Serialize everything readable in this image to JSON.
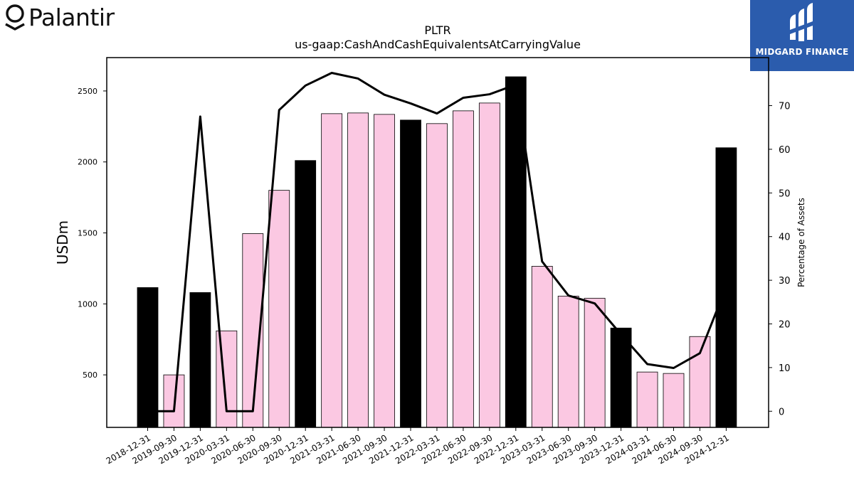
{
  "brand": {
    "name": "Palantir",
    "logo_icon": "palantir-logo-icon"
  },
  "badge": {
    "text": "MIDGARD FINANCE",
    "color": "#2b5cad",
    "icon": "midgard-logo-icon"
  },
  "chart_data": {
    "type": "bar",
    "title": "PLTR",
    "subtitle": "us-gaap:CashAndCashEquivalentsAtCarryingValue",
    "ylabel": "USDm",
    "y2label": "Percentage of Assets",
    "ylim": [
      130,
      2735
    ],
    "y2lim": [
      -3.7,
      81
    ],
    "yticks": [
      500,
      1000,
      1500,
      2000,
      2500
    ],
    "y2ticks": [
      0,
      10,
      20,
      30,
      40,
      50,
      60,
      70
    ],
    "categories": [
      "2018-12-31",
      "2019-09-30",
      "2019-12-31",
      "2020-03-31",
      "2020-06-30",
      "2020-09-30",
      "2020-12-31",
      "2021-03-31",
      "2021-06-30",
      "2021-09-30",
      "2021-12-31",
      "2022-03-31",
      "2022-06-30",
      "2022-09-30",
      "2022-12-31",
      "2023-03-31",
      "2023-06-30",
      "2023-09-30",
      "2023-12-31",
      "2024-03-31",
      "2024-06-30",
      "2024-09-30",
      "2024-12-31"
    ],
    "series": [
      {
        "kind": "bar",
        "values": [
          1115,
          500,
          1080,
          810,
          1495,
          1800,
          2010,
          2340,
          2345,
          2335,
          2295,
          2270,
          2360,
          2415,
          2600,
          1265,
          1055,
          1040,
          830,
          520,
          510,
          770,
          2100
        ],
        "fiscal_year_end": [
          true,
          false,
          true,
          false,
          false,
          false,
          true,
          false,
          false,
          false,
          true,
          false,
          false,
          false,
          true,
          false,
          false,
          false,
          true,
          false,
          false,
          false,
          true
        ],
        "colors": {
          "quarter": "#fbc8e2",
          "year_end": "#000000"
        }
      },
      {
        "kind": "line",
        "axis": "right",
        "values": [
          0,
          0,
          67.5,
          0,
          0,
          69,
          74.6,
          77.5,
          76.2,
          72.5,
          70.5,
          68.2,
          71.8,
          72.6,
          74.8,
          34.3,
          26.5,
          24.7,
          17.6,
          10.8,
          9.9,
          13.3,
          28.5
        ],
        "color": "#000000"
      }
    ]
  }
}
